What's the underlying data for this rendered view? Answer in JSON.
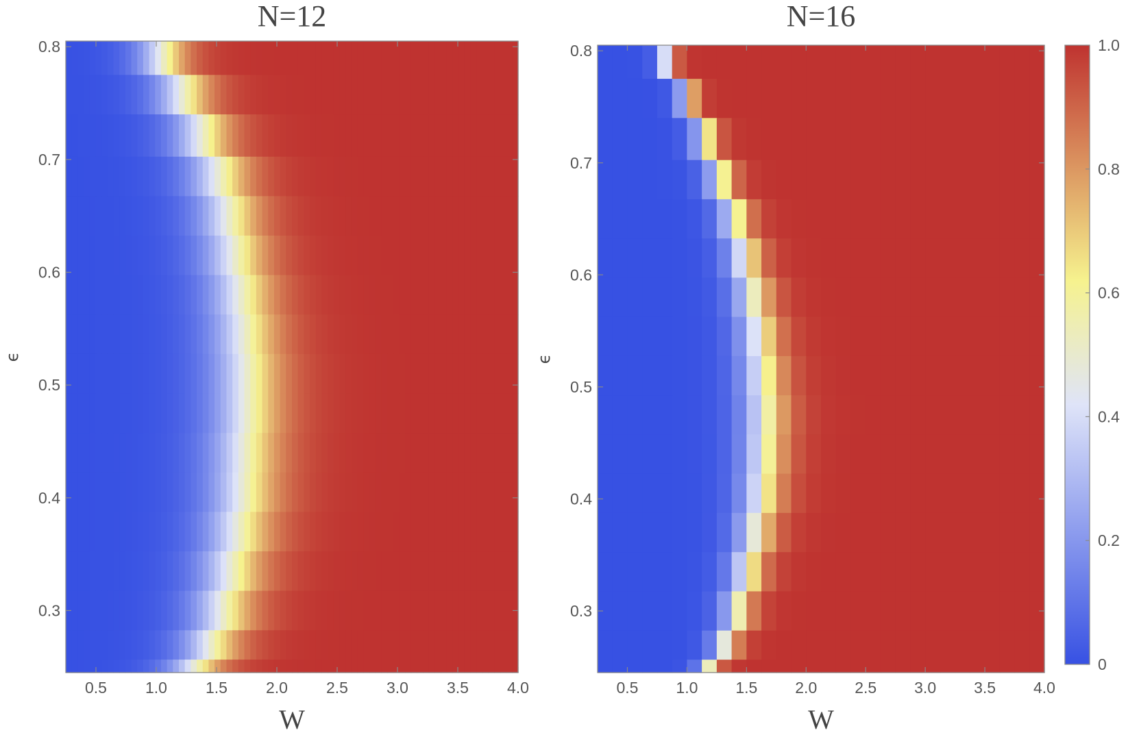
{
  "chart_data": [
    {
      "type": "heatmap",
      "title": "N=12",
      "xlabel": "W",
      "ylabel": "ϵ",
      "xlim": [
        0.25,
        4.0
      ],
      "ylim": [
        0.245,
        0.805
      ],
      "xticks": [
        "0.5",
        "1.0",
        "1.5",
        "2.0",
        "2.5",
        "3.0",
        "3.5",
        "4.0"
      ],
      "yticks": [
        "0.3",
        "0.4",
        "0.5",
        "0.6",
        "0.7",
        "0.8"
      ],
      "color_scale": [
        0,
        1
      ],
      "x_range": [
        0.25,
        4.0
      ],
      "x_steps": 76,
      "rows": [
        {
          "eps": 0.79,
          "center": 1.05,
          "width": 0.55
        },
        {
          "eps": 0.76,
          "center": 1.22,
          "width": 0.62
        },
        {
          "eps": 0.72,
          "center": 1.38,
          "width": 0.66
        },
        {
          "eps": 0.685,
          "center": 1.52,
          "width": 0.7
        },
        {
          "eps": 0.65,
          "center": 1.6,
          "width": 0.72
        },
        {
          "eps": 0.615,
          "center": 1.65,
          "width": 0.74
        },
        {
          "eps": 0.58,
          "center": 1.7,
          "width": 0.76
        },
        {
          "eps": 0.545,
          "center": 1.73,
          "width": 0.78
        },
        {
          "eps": 0.51,
          "center": 1.75,
          "width": 0.8
        },
        {
          "eps": 0.475,
          "center": 1.75,
          "width": 0.8
        },
        {
          "eps": 0.44,
          "center": 1.73,
          "width": 0.8
        },
        {
          "eps": 0.405,
          "center": 1.72,
          "width": 0.79
        },
        {
          "eps": 0.37,
          "center": 1.68,
          "width": 0.77
        },
        {
          "eps": 0.335,
          "center": 1.62,
          "width": 0.74
        },
        {
          "eps": 0.3,
          "center": 1.55,
          "width": 0.7
        },
        {
          "eps": 0.265,
          "center": 1.45,
          "width": 0.65
        },
        {
          "eps": 0.248,
          "center": 1.32,
          "width": 0.6
        }
      ]
    },
    {
      "type": "heatmap",
      "title": "N=16",
      "xlabel": "W",
      "ylabel": "ϵ",
      "xlim": [
        0.25,
        4.0
      ],
      "ylim": [
        0.245,
        0.805
      ],
      "xticks": [
        "0.5",
        "1.0",
        "1.5",
        "2.0",
        "2.5",
        "3.0",
        "3.5",
        "4.0"
      ],
      "yticks": [
        "0.3",
        "0.4",
        "0.5",
        "0.6",
        "0.7",
        "0.8"
      ],
      "color_scale": [
        0,
        1
      ],
      "x_range": [
        0.25,
        4.0
      ],
      "x_steps": 30,
      "rows": [
        {
          "eps": 0.79,
          "center": 0.83,
          "width": 0.18
        },
        {
          "eps": 0.76,
          "center": 1.0,
          "width": 0.2
        },
        {
          "eps": 0.72,
          "center": 1.15,
          "width": 0.26
        },
        {
          "eps": 0.685,
          "center": 1.28,
          "width": 0.3
        },
        {
          "eps": 0.65,
          "center": 1.4,
          "width": 0.34
        },
        {
          "eps": 0.615,
          "center": 1.48,
          "width": 0.38
        },
        {
          "eps": 0.58,
          "center": 1.55,
          "width": 0.42
        },
        {
          "eps": 0.545,
          "center": 1.6,
          "width": 0.45
        },
        {
          "eps": 0.51,
          "center": 1.63,
          "width": 0.48
        },
        {
          "eps": 0.475,
          "center": 1.65,
          "width": 0.5
        },
        {
          "eps": 0.44,
          "center": 1.64,
          "width": 0.48
        },
        {
          "eps": 0.405,
          "center": 1.62,
          "width": 0.46
        },
        {
          "eps": 0.37,
          "center": 1.57,
          "width": 0.42
        },
        {
          "eps": 0.335,
          "center": 1.5,
          "width": 0.38
        },
        {
          "eps": 0.3,
          "center": 1.42,
          "width": 0.33
        },
        {
          "eps": 0.265,
          "center": 1.32,
          "width": 0.28
        },
        {
          "eps": 0.248,
          "center": 1.18,
          "width": 0.22
        }
      ]
    }
  ],
  "colorbar": {
    "ticks": [
      "0",
      "0.2",
      "0.4",
      "0.6",
      "0.8",
      "1.0"
    ],
    "values": [
      0,
      0.2,
      0.4,
      0.6,
      0.8,
      1.0
    ],
    "colors": [
      "#3751e3",
      "#dfe4f8",
      "#f6f28e",
      "#bf3330"
    ]
  }
}
